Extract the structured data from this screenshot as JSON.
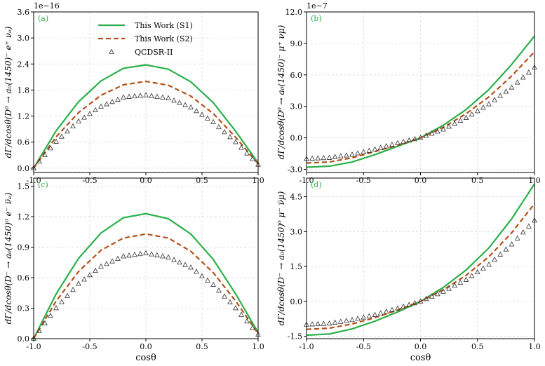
{
  "figure": {
    "xlabel": "cosθ"
  },
  "colors": {
    "s1": "#2ab04a",
    "s2": "#b5501b",
    "qcdsr": "#333333",
    "grid": "#d9d9d9",
    "label": "#2ab04a"
  },
  "legend": {
    "s1": "This Work (S1)",
    "s2": "This Work (S2)",
    "qcdsr": "QCDSR-II"
  },
  "chart_data": [
    {
      "type": "line",
      "panel": "(a)",
      "title": "",
      "ylabel": "dΓ/dcosθ(D⁰ → a₀(1450)⁻ e⁺ νₑ)",
      "exponent": "1e−16",
      "xlim": [
        -1.0,
        1.0
      ],
      "ylim": [
        -0.1,
        3.6
      ],
      "xticks": [
        -1.0,
        -0.5,
        0.0,
        0.5,
        1.0
      ],
      "xtick_labels": [
        "-1.0",
        "-0.5",
        "0.0",
        "0.5",
        "1.0"
      ],
      "yticks": [
        0.0,
        0.6,
        1.2,
        1.8,
        2.4,
        3.0,
        3.6
      ],
      "ytick_labels": [
        "0.0",
        "0.6",
        "1.2",
        "1.8",
        "2.4",
        "3.0",
        "3.6"
      ],
      "x": [
        -1.0,
        -0.8,
        -0.6,
        -0.4,
        -0.2,
        0.0,
        0.2,
        0.4,
        0.6,
        0.8,
        1.0
      ],
      "series": [
        {
          "name": "This Work (S1)",
          "style": "solid",
          "values": [
            0.0,
            0.86,
            1.53,
            2.01,
            2.3,
            2.38,
            2.28,
            1.99,
            1.51,
            0.85,
            0.12
          ]
        },
        {
          "name": "This Work (S2)",
          "style": "dashed",
          "values": [
            0.0,
            0.72,
            1.28,
            1.68,
            1.92,
            2.0,
            1.91,
            1.66,
            1.26,
            0.71,
            0.1
          ]
        },
        {
          "name": "QCDSR-II",
          "style": "triangles",
          "values": [
            0.0,
            0.61,
            1.08,
            1.42,
            1.63,
            1.68,
            1.61,
            1.4,
            1.06,
            0.6,
            0.08
          ]
        }
      ]
    },
    {
      "type": "line",
      "panel": "(b)",
      "title": "",
      "ylabel": "dΓ/dcosθ(D⁰ → a₀(1450)⁻ μ⁺ νμ)",
      "exponent": "1e−7",
      "xlim": [
        -1.0,
        1.0
      ],
      "ylim": [
        -3.3,
        12.0
      ],
      "xticks": [
        -1.0,
        -0.5,
        0.0,
        0.5,
        1.0
      ],
      "xtick_labels": [
        "-1.0",
        "-0.5",
        "0.0",
        "0.5",
        "1.0"
      ],
      "yticks": [
        -3.0,
        0.0,
        3.0,
        6.0,
        9.0,
        12.0
      ],
      "ytick_labels": [
        "-3.0",
        "0.0",
        "3.0",
        "6.0",
        "9.0",
        "12.0"
      ],
      "x": [
        -1.0,
        -0.8,
        -0.6,
        -0.4,
        -0.2,
        0.0,
        0.2,
        0.4,
        0.6,
        0.8,
        1.0
      ],
      "series": [
        {
          "name": "This Work (S1)",
          "style": "solid",
          "values": [
            -2.8,
            -2.7,
            -2.3,
            -1.6,
            -0.8,
            0.0,
            1.2,
            2.7,
            4.6,
            7.0,
            9.7
          ]
        },
        {
          "name": "This Work (S2)",
          "style": "dashed",
          "values": [
            -2.4,
            -2.3,
            -1.9,
            -1.3,
            -0.7,
            0.0,
            1.0,
            2.3,
            3.9,
            5.9,
            8.2
          ]
        },
        {
          "name": "QCDSR-II",
          "style": "triangles",
          "values": [
            -2.0,
            -1.9,
            -1.6,
            -1.1,
            -0.5,
            0.0,
            0.8,
            1.9,
            3.2,
            4.8,
            6.7
          ]
        }
      ]
    },
    {
      "type": "line",
      "panel": "(c)",
      "title": "",
      "ylabel": "dΓ/dcosθ(D⁻ → a₀(1450)⁰ e⁻ ν̅ₑ)",
      "exponent": "",
      "xlim": [
        -1.0,
        1.0
      ],
      "ylim": [
        0.0,
        1.58
      ],
      "xticks": [
        -1.0,
        -0.5,
        0.0,
        0.5,
        1.0
      ],
      "xtick_labels": [
        "-1.0",
        "-0.5",
        "0.0",
        "0.5",
        "1.0"
      ],
      "yticks": [
        0.0,
        0.3,
        0.6,
        0.9,
        1.2,
        1.5
      ],
      "ytick_labels": [
        "0.0",
        "0.3",
        "0.6",
        "0.9",
        "1.2",
        "1.5"
      ],
      "x": [
        -1.0,
        -0.8,
        -0.6,
        -0.4,
        -0.2,
        0.0,
        0.2,
        0.4,
        0.6,
        0.8,
        1.0
      ],
      "series": [
        {
          "name": "This Work (S1)",
          "style": "solid",
          "values": [
            0.0,
            0.44,
            0.79,
            1.04,
            1.19,
            1.23,
            1.18,
            1.03,
            0.78,
            0.44,
            0.06
          ]
        },
        {
          "name": "This Work (S2)",
          "style": "dashed",
          "values": [
            0.0,
            0.37,
            0.66,
            0.87,
            0.99,
            1.03,
            0.99,
            0.86,
            0.65,
            0.37,
            0.05
          ]
        },
        {
          "name": "QCDSR-II",
          "style": "triangles",
          "values": [
            0.0,
            0.3,
            0.54,
            0.71,
            0.81,
            0.84,
            0.8,
            0.7,
            0.53,
            0.3,
            0.04
          ]
        }
      ]
    },
    {
      "type": "line",
      "panel": "(d)",
      "title": "",
      "ylabel": "dΓ/dcosθ(D⁻ → a₀(1450)⁰ μ⁻ ν̅μ)",
      "exponent": "",
      "xlim": [
        -1.0,
        1.0
      ],
      "ylim": [
        -1.6,
        5.3
      ],
      "xticks": [
        -1.0,
        -0.5,
        0.0,
        0.5,
        1.0
      ],
      "xtick_labels": [
        "-1.0",
        "-0.5",
        "0.0",
        "0.5",
        "1.0"
      ],
      "yticks": [
        -1.5,
        0.0,
        1.5,
        3.0,
        4.5
      ],
      "ytick_labels": [
        "-1.5",
        "0.0",
        "1.5",
        "3.0",
        "4.5"
      ],
      "x": [
        -1.0,
        -0.8,
        -0.6,
        -0.4,
        -0.2,
        0.0,
        0.2,
        0.4,
        0.6,
        0.8,
        1.0
      ],
      "series": [
        {
          "name": "This Work (S1)",
          "style": "solid",
          "values": [
            -1.45,
            -1.4,
            -1.18,
            -0.85,
            -0.45,
            0.0,
            0.6,
            1.35,
            2.3,
            3.55,
            5.05
          ]
        },
        {
          "name": "This Work (S2)",
          "style": "dashed",
          "values": [
            -1.2,
            -1.15,
            -0.97,
            -0.7,
            -0.37,
            0.0,
            0.5,
            1.12,
            1.92,
            2.95,
            4.2
          ]
        },
        {
          "name": "QCDSR-II",
          "style": "triangles",
          "values": [
            -1.0,
            -0.95,
            -0.8,
            -0.58,
            -0.3,
            0.0,
            0.42,
            0.93,
            1.58,
            2.45,
            3.48
          ]
        }
      ]
    }
  ]
}
